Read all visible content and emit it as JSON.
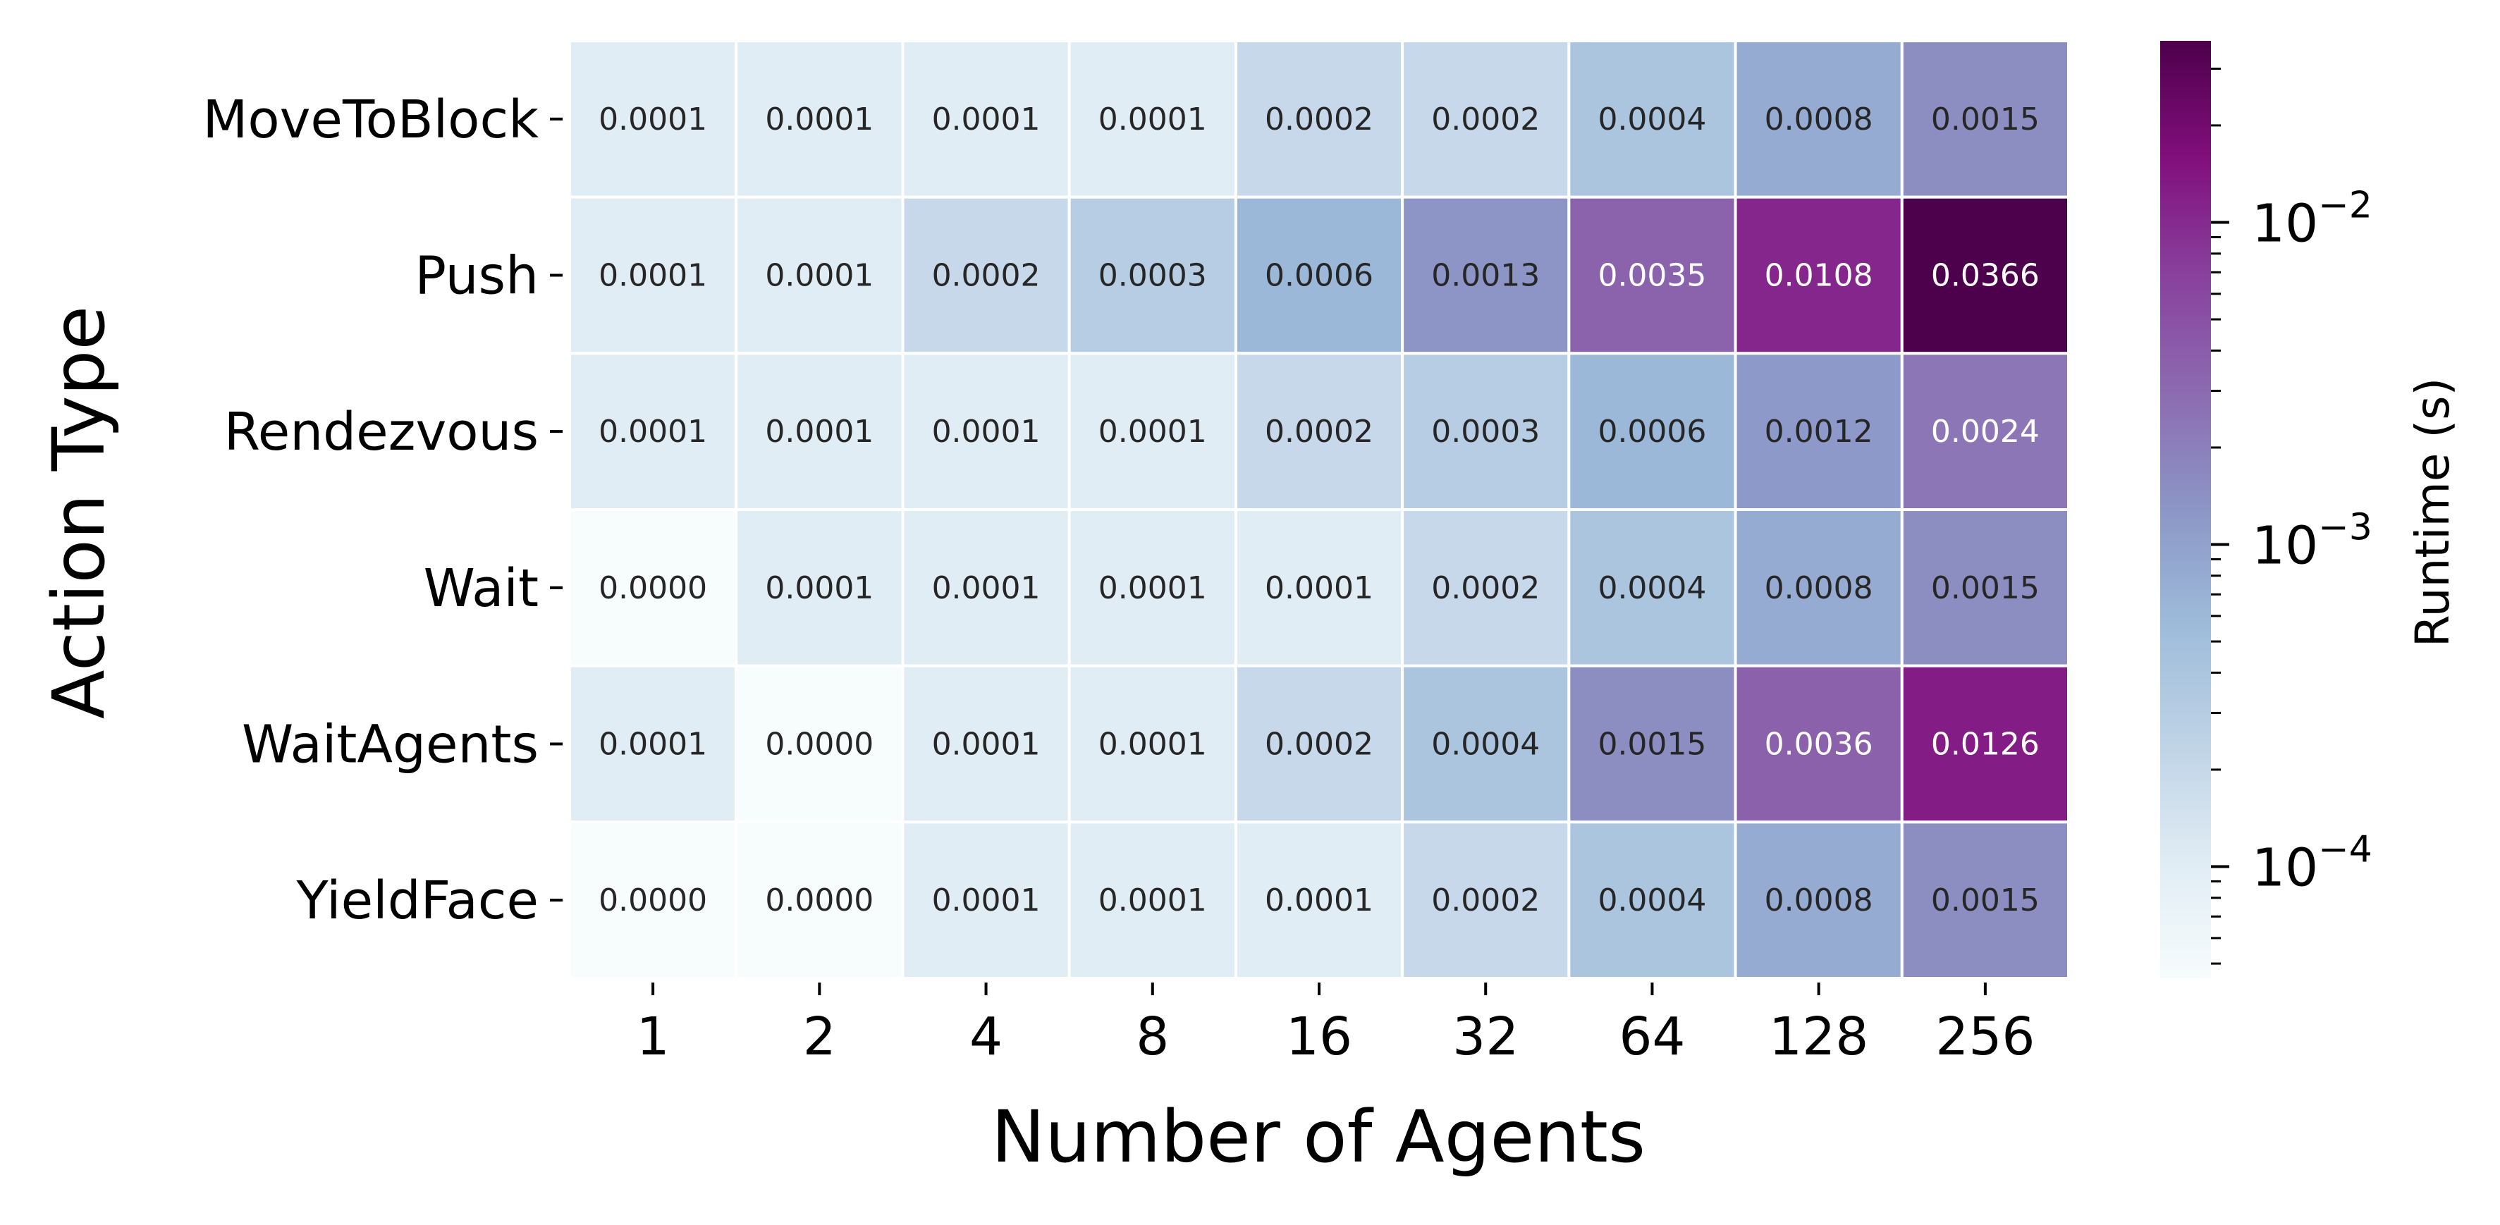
{
  "chart_data": {
    "type": "heatmap",
    "title": "",
    "xlabel": "Number of Agents",
    "ylabel": "Action Type",
    "x_categories": [
      "1",
      "2",
      "4",
      "8",
      "16",
      "32",
      "64",
      "128",
      "256"
    ],
    "y_categories": [
      "MoveToBlock",
      "Push",
      "Rendezvous",
      "Wait",
      "WaitAgents",
      "YieldFace"
    ],
    "values": [
      [
        0.0001,
        0.0001,
        0.0001,
        0.0001,
        0.0002,
        0.0002,
        0.0004,
        0.0008,
        0.0015
      ],
      [
        0.0001,
        0.0001,
        0.0002,
        0.0003,
        0.0006,
        0.0013,
        0.0035,
        0.0108,
        0.0366
      ],
      [
        0.0001,
        0.0001,
        0.0001,
        0.0001,
        0.0002,
        0.0003,
        0.0006,
        0.0012,
        0.0024
      ],
      [
        0.0,
        0.0001,
        0.0001,
        0.0001,
        0.0001,
        0.0002,
        0.0004,
        0.0008,
        0.0015
      ],
      [
        0.0001,
        0.0,
        0.0001,
        0.0001,
        0.0002,
        0.0004,
        0.0015,
        0.0036,
        0.0126
      ],
      [
        0.0,
        0.0,
        0.0001,
        0.0001,
        0.0001,
        0.0002,
        0.0004,
        0.0008,
        0.0015
      ]
    ],
    "value_format": "4 decimals",
    "colorbar": {
      "label": "Runtime (s)",
      "scale": "log",
      "colormap": "BuPu",
      "range": [
        4.5e-05,
        0.0366
      ],
      "tick_values": [
        0.0001,
        0.001,
        0.01
      ],
      "tick_labels": [
        {
          "base": "10",
          "exponent": "−4"
        },
        {
          "base": "10",
          "exponent": "−3"
        },
        {
          "base": "10",
          "exponent": "−2"
        }
      ]
    },
    "colors": {
      "gradient": [
        "#f7fcfd",
        "#e0ecf4",
        "#bfd3e6",
        "#9ebcda",
        "#8c96c6",
        "#8c6bb1",
        "#88419d",
        "#810f7c",
        "#4d004b"
      ],
      "dark_text": "#262626",
      "light_text": "#ffffff"
    }
  }
}
